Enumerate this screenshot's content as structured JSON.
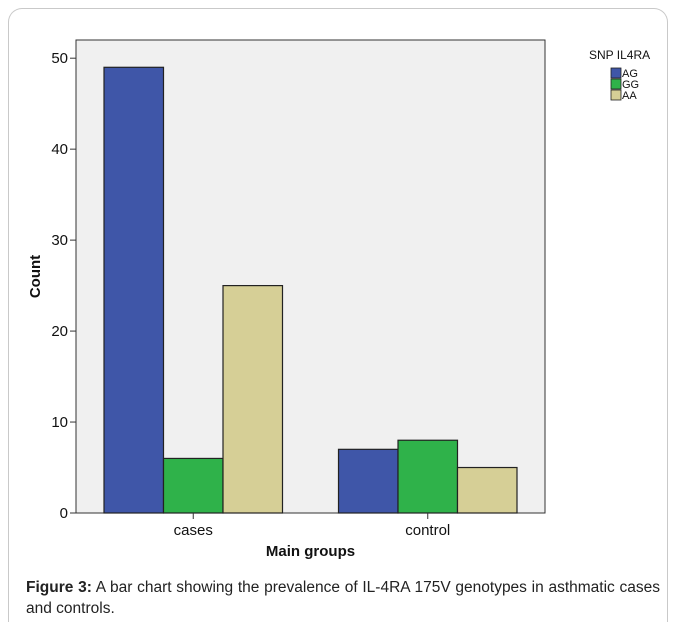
{
  "chart_data": {
    "type": "bar",
    "categories": [
      "cases",
      "control"
    ],
    "series": [
      {
        "name": "AG",
        "values": [
          49,
          7
        ],
        "color": "#3f56a8"
      },
      {
        "name": "GG",
        "values": [
          6,
          8
        ],
        "color": "#2fb24a"
      },
      {
        "name": "AA",
        "values": [
          25,
          5
        ],
        "color": "#d6cf96"
      }
    ],
    "xlabel": "Main groups",
    "ylabel": "Count",
    "ylim": [
      0,
      52
    ],
    "yticks": [
      0,
      10,
      20,
      30,
      40,
      50
    ],
    "legend_title": "SNP IL4RA",
    "legend_position": "top-right",
    "grid": false,
    "plot_background": "#f0f0f0"
  },
  "caption": {
    "label": "Figure 3:",
    "text": " A bar chart showing the prevalence of IL-4RA 175V genotypes in asthmatic cases and controls."
  }
}
